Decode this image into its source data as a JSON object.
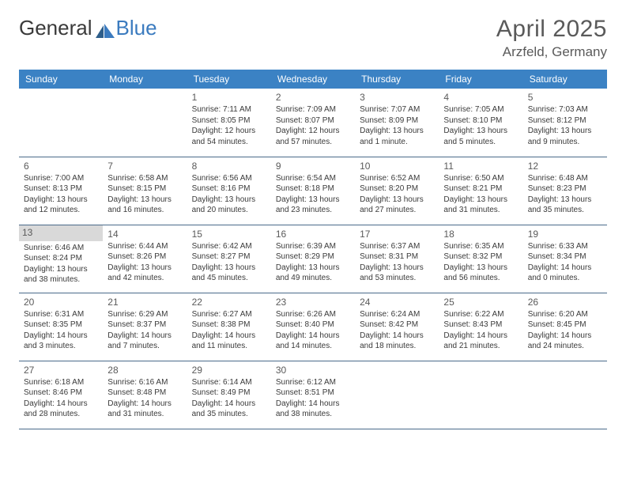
{
  "brand": {
    "part1": "General",
    "part2": "Blue"
  },
  "title": "April 2025",
  "location": "Arzfeld, Germany",
  "colors": {
    "header_bg": "#3b82c4",
    "header_text": "#ffffff",
    "row_border": "#4a6a8a",
    "text": "#3a3a3a",
    "muted": "#5a5a5a",
    "highlight_bg": "#d9d9d9",
    "logo_blue": "#3b7bbf"
  },
  "day_headers": [
    "Sunday",
    "Monday",
    "Tuesday",
    "Wednesday",
    "Thursday",
    "Friday",
    "Saturday"
  ],
  "weeks": [
    [
      {
        "day": "",
        "sunrise": "",
        "sunset": "",
        "daylight": ""
      },
      {
        "day": "",
        "sunrise": "",
        "sunset": "",
        "daylight": ""
      },
      {
        "day": "1",
        "sunrise": "Sunrise: 7:11 AM",
        "sunset": "Sunset: 8:05 PM",
        "daylight": "Daylight: 12 hours and 54 minutes."
      },
      {
        "day": "2",
        "sunrise": "Sunrise: 7:09 AM",
        "sunset": "Sunset: 8:07 PM",
        "daylight": "Daylight: 12 hours and 57 minutes."
      },
      {
        "day": "3",
        "sunrise": "Sunrise: 7:07 AM",
        "sunset": "Sunset: 8:09 PM",
        "daylight": "Daylight: 13 hours and 1 minute."
      },
      {
        "day": "4",
        "sunrise": "Sunrise: 7:05 AM",
        "sunset": "Sunset: 8:10 PM",
        "daylight": "Daylight: 13 hours and 5 minutes."
      },
      {
        "day": "5",
        "sunrise": "Sunrise: 7:03 AM",
        "sunset": "Sunset: 8:12 PM",
        "daylight": "Daylight: 13 hours and 9 minutes."
      }
    ],
    [
      {
        "day": "6",
        "sunrise": "Sunrise: 7:00 AM",
        "sunset": "Sunset: 8:13 PM",
        "daylight": "Daylight: 13 hours and 12 minutes."
      },
      {
        "day": "7",
        "sunrise": "Sunrise: 6:58 AM",
        "sunset": "Sunset: 8:15 PM",
        "daylight": "Daylight: 13 hours and 16 minutes."
      },
      {
        "day": "8",
        "sunrise": "Sunrise: 6:56 AM",
        "sunset": "Sunset: 8:16 PM",
        "daylight": "Daylight: 13 hours and 20 minutes."
      },
      {
        "day": "9",
        "sunrise": "Sunrise: 6:54 AM",
        "sunset": "Sunset: 8:18 PM",
        "daylight": "Daylight: 13 hours and 23 minutes."
      },
      {
        "day": "10",
        "sunrise": "Sunrise: 6:52 AM",
        "sunset": "Sunset: 8:20 PM",
        "daylight": "Daylight: 13 hours and 27 minutes."
      },
      {
        "day": "11",
        "sunrise": "Sunrise: 6:50 AM",
        "sunset": "Sunset: 8:21 PM",
        "daylight": "Daylight: 13 hours and 31 minutes."
      },
      {
        "day": "12",
        "sunrise": "Sunrise: 6:48 AM",
        "sunset": "Sunset: 8:23 PM",
        "daylight": "Daylight: 13 hours and 35 minutes."
      }
    ],
    [
      {
        "day": "13",
        "highlight": true,
        "sunrise": "Sunrise: 6:46 AM",
        "sunset": "Sunset: 8:24 PM",
        "daylight": "Daylight: 13 hours and 38 minutes."
      },
      {
        "day": "14",
        "sunrise": "Sunrise: 6:44 AM",
        "sunset": "Sunset: 8:26 PM",
        "daylight": "Daylight: 13 hours and 42 minutes."
      },
      {
        "day": "15",
        "sunrise": "Sunrise: 6:42 AM",
        "sunset": "Sunset: 8:27 PM",
        "daylight": "Daylight: 13 hours and 45 minutes."
      },
      {
        "day": "16",
        "sunrise": "Sunrise: 6:39 AM",
        "sunset": "Sunset: 8:29 PM",
        "daylight": "Daylight: 13 hours and 49 minutes."
      },
      {
        "day": "17",
        "sunrise": "Sunrise: 6:37 AM",
        "sunset": "Sunset: 8:31 PM",
        "daylight": "Daylight: 13 hours and 53 minutes."
      },
      {
        "day": "18",
        "sunrise": "Sunrise: 6:35 AM",
        "sunset": "Sunset: 8:32 PM",
        "daylight": "Daylight: 13 hours and 56 minutes."
      },
      {
        "day": "19",
        "sunrise": "Sunrise: 6:33 AM",
        "sunset": "Sunset: 8:34 PM",
        "daylight": "Daylight: 14 hours and 0 minutes."
      }
    ],
    [
      {
        "day": "20",
        "sunrise": "Sunrise: 6:31 AM",
        "sunset": "Sunset: 8:35 PM",
        "daylight": "Daylight: 14 hours and 3 minutes."
      },
      {
        "day": "21",
        "sunrise": "Sunrise: 6:29 AM",
        "sunset": "Sunset: 8:37 PM",
        "daylight": "Daylight: 14 hours and 7 minutes."
      },
      {
        "day": "22",
        "sunrise": "Sunrise: 6:27 AM",
        "sunset": "Sunset: 8:38 PM",
        "daylight": "Daylight: 14 hours and 11 minutes."
      },
      {
        "day": "23",
        "sunrise": "Sunrise: 6:26 AM",
        "sunset": "Sunset: 8:40 PM",
        "daylight": "Daylight: 14 hours and 14 minutes."
      },
      {
        "day": "24",
        "sunrise": "Sunrise: 6:24 AM",
        "sunset": "Sunset: 8:42 PM",
        "daylight": "Daylight: 14 hours and 18 minutes."
      },
      {
        "day": "25",
        "sunrise": "Sunrise: 6:22 AM",
        "sunset": "Sunset: 8:43 PM",
        "daylight": "Daylight: 14 hours and 21 minutes."
      },
      {
        "day": "26",
        "sunrise": "Sunrise: 6:20 AM",
        "sunset": "Sunset: 8:45 PM",
        "daylight": "Daylight: 14 hours and 24 minutes."
      }
    ],
    [
      {
        "day": "27",
        "sunrise": "Sunrise: 6:18 AM",
        "sunset": "Sunset: 8:46 PM",
        "daylight": "Daylight: 14 hours and 28 minutes."
      },
      {
        "day": "28",
        "sunrise": "Sunrise: 6:16 AM",
        "sunset": "Sunset: 8:48 PM",
        "daylight": "Daylight: 14 hours and 31 minutes."
      },
      {
        "day": "29",
        "sunrise": "Sunrise: 6:14 AM",
        "sunset": "Sunset: 8:49 PM",
        "daylight": "Daylight: 14 hours and 35 minutes."
      },
      {
        "day": "30",
        "sunrise": "Sunrise: 6:12 AM",
        "sunset": "Sunset: 8:51 PM",
        "daylight": "Daylight: 14 hours and 38 minutes."
      },
      {
        "day": "",
        "sunrise": "",
        "sunset": "",
        "daylight": ""
      },
      {
        "day": "",
        "sunrise": "",
        "sunset": "",
        "daylight": ""
      },
      {
        "day": "",
        "sunrise": "",
        "sunset": "",
        "daylight": ""
      }
    ]
  ]
}
